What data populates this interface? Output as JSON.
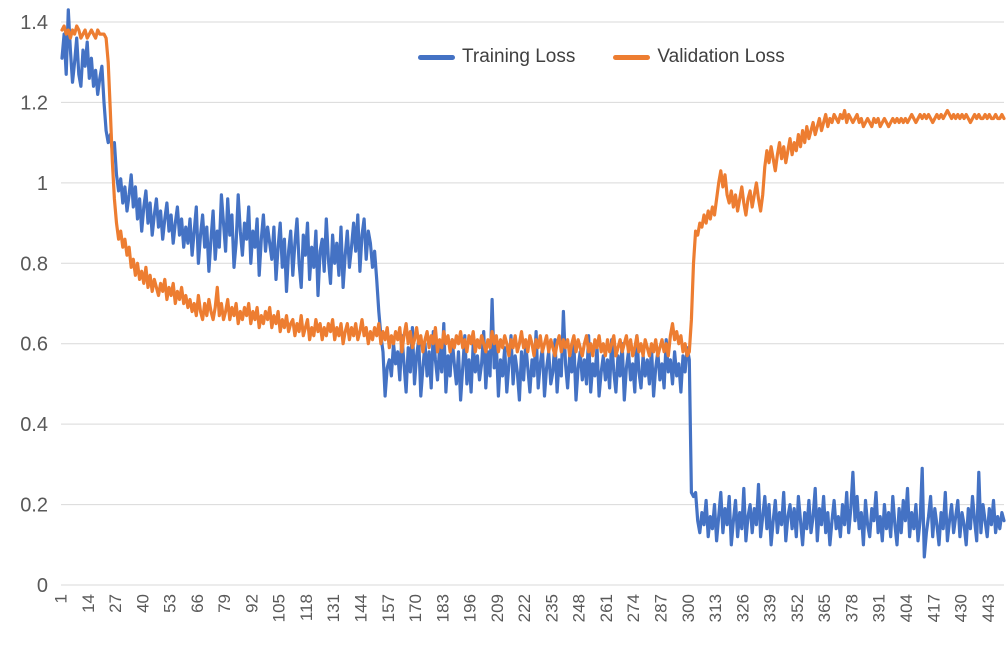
{
  "legend": {
    "training_label": "Training Loss",
    "validation_label": "Validation Loss"
  },
  "colors": {
    "training": "#4472C4",
    "validation": "#ED7D31",
    "gridline": "#D9D9D9",
    "axis_text": "#595959",
    "legend_text": "#404040",
    "background": "#FFFFFF"
  },
  "chart_data": {
    "type": "line",
    "title": "",
    "xlabel": "",
    "ylabel": "",
    "ylim": [
      0,
      1.4
    ],
    "y_tick_labels": [
      "1.4",
      "1.2",
      "1",
      "0.8",
      "0.6",
      "0.4",
      "0.2",
      "0"
    ],
    "y_tick_values": [
      1.4,
      1.2,
      1.0,
      0.8,
      0.6,
      0.4,
      0.2,
      0
    ],
    "x_range": [
      1,
      450
    ],
    "x_tick_step": 13,
    "x_tick_labels": [
      "1",
      "14",
      "27",
      "40",
      "53",
      "66",
      "79",
      "92",
      "105",
      "118",
      "131",
      "144",
      "157",
      "170",
      "183",
      "196",
      "209",
      "222",
      "235",
      "248",
      "261",
      "274",
      "287",
      "300",
      "313",
      "326",
      "339",
      "352",
      "365",
      "378",
      "391",
      "404",
      "417",
      "430",
      "443"
    ],
    "x_label_rotation": -90,
    "grid": "horizontal",
    "legend_position": "top",
    "series": [
      {
        "name": "Training Loss",
        "color": "#4472C4",
        "values": [
          1.31,
          1.37,
          1.27,
          1.43,
          1.33,
          1.25,
          1.3,
          1.36,
          1.27,
          1.24,
          1.33,
          1.29,
          1.35,
          1.26,
          1.31,
          1.24,
          1.28,
          1.22,
          1.26,
          1.29,
          1.2,
          1.13,
          1.1,
          1.12,
          1.08,
          1.1,
          1.02,
          0.98,
          1.01,
          0.95,
          0.99,
          0.93,
          0.97,
          1.02,
          0.94,
          0.99,
          0.91,
          0.96,
          0.88,
          0.94,
          0.98,
          0.9,
          0.95,
          0.87,
          0.92,
          0.96,
          0.89,
          0.93,
          0.86,
          0.91,
          0.95,
          0.88,
          0.92,
          0.85,
          0.9,
          0.94,
          0.87,
          0.91,
          0.84,
          0.89,
          0.85,
          0.91,
          0.82,
          0.88,
          0.94,
          0.8,
          0.87,
          0.92,
          0.84,
          0.89,
          0.78,
          0.86,
          0.93,
          0.81,
          0.88,
          0.84,
          0.97,
          0.9,
          0.83,
          0.96,
          0.87,
          0.92,
          0.79,
          0.85,
          0.97,
          0.88,
          0.82,
          0.9,
          0.86,
          0.94,
          0.8,
          0.88,
          0.84,
          0.91,
          0.77,
          0.86,
          0.92,
          0.83,
          0.89,
          0.85,
          0.81,
          0.89,
          0.76,
          0.84,
          0.9,
          0.79,
          0.86,
          0.73,
          0.83,
          0.88,
          0.77,
          0.85,
          0.91,
          0.8,
          0.74,
          0.87,
          0.82,
          0.9,
          0.76,
          0.84,
          0.79,
          0.88,
          0.72,
          0.83,
          0.86,
          0.78,
          0.91,
          0.81,
          0.75,
          0.87,
          0.8,
          0.85,
          0.77,
          0.89,
          0.74,
          0.82,
          0.88,
          0.79,
          0.84,
          0.9,
          0.83,
          0.92,
          0.78,
          0.87,
          0.91,
          0.81,
          0.88,
          0.85,
          0.79,
          0.83,
          0.76,
          0.68,
          0.62,
          0.58,
          0.47,
          0.54,
          0.56,
          0.52,
          0.6,
          0.55,
          0.58,
          0.51,
          0.62,
          0.55,
          0.48,
          0.59,
          0.53,
          0.64,
          0.5,
          0.57,
          0.61,
          0.47,
          0.54,
          0.6,
          0.52,
          0.58,
          0.49,
          0.63,
          0.56,
          0.51,
          0.59,
          0.53,
          0.65,
          0.48,
          0.57,
          0.52,
          0.61,
          0.55,
          0.5,
          0.58,
          0.46,
          0.54,
          0.62,
          0.5,
          0.56,
          0.48,
          0.6,
          0.53,
          0.57,
          0.51,
          0.55,
          0.63,
          0.49,
          0.58,
          0.52,
          0.71,
          0.54,
          0.6,
          0.47,
          0.56,
          0.52,
          0.59,
          0.48,
          0.55,
          0.62,
          0.5,
          0.57,
          0.53,
          0.46,
          0.58,
          0.51,
          0.6,
          0.54,
          0.48,
          0.56,
          0.52,
          0.63,
          0.49,
          0.55,
          0.59,
          0.47,
          0.54,
          0.58,
          0.5,
          0.53,
          0.61,
          0.48,
          0.56,
          0.52,
          0.68,
          0.55,
          0.49,
          0.57,
          0.53,
          0.6,
          0.46,
          0.54,
          0.58,
          0.51,
          0.56,
          0.5,
          0.62,
          0.48,
          0.55,
          0.52,
          0.59,
          0.47,
          0.53,
          0.57,
          0.51,
          0.56,
          0.49,
          0.61,
          0.53,
          0.48,
          0.57,
          0.52,
          0.6,
          0.46,
          0.54,
          0.58,
          0.51,
          0.55,
          0.48,
          0.62,
          0.53,
          0.49,
          0.57,
          0.52,
          0.56,
          0.5,
          0.59,
          0.47,
          0.54,
          0.58,
          0.51,
          0.55,
          0.49,
          0.61,
          0.53,
          0.56,
          0.5,
          0.58,
          0.52,
          0.55,
          0.48,
          0.57,
          0.53,
          0.59,
          0.56,
          0.23,
          0.22,
          0.23,
          0.16,
          0.13,
          0.18,
          0.15,
          0.21,
          0.12,
          0.17,
          0.14,
          0.2,
          0.11,
          0.17,
          0.23,
          0.13,
          0.19,
          0.15,
          0.22,
          0.1,
          0.16,
          0.21,
          0.12,
          0.18,
          0.14,
          0.24,
          0.11,
          0.17,
          0.2,
          0.13,
          0.19,
          0.15,
          0.25,
          0.12,
          0.17,
          0.22,
          0.14,
          0.2,
          0.1,
          0.16,
          0.21,
          0.13,
          0.18,
          0.15,
          0.23,
          0.11,
          0.17,
          0.2,
          0.14,
          0.19,
          0.12,
          0.22,
          0.16,
          0.1,
          0.18,
          0.14,
          0.21,
          0.13,
          0.17,
          0.24,
          0.11,
          0.19,
          0.15,
          0.22,
          0.13,
          0.18,
          0.1,
          0.16,
          0.21,
          0.14,
          0.17,
          0.12,
          0.2,
          0.15,
          0.23,
          0.13,
          0.19,
          0.28,
          0.16,
          0.22,
          0.14,
          0.18,
          0.1,
          0.21,
          0.15,
          0.12,
          0.19,
          0.16,
          0.23,
          0.13,
          0.17,
          0.11,
          0.2,
          0.14,
          0.18,
          0.12,
          0.22,
          0.15,
          0.1,
          0.19,
          0.13,
          0.21,
          0.16,
          0.24,
          0.12,
          0.18,
          0.14,
          0.2,
          0.11,
          0.16,
          0.29,
          0.07,
          0.13,
          0.17,
          0.22,
          0.12,
          0.19,
          0.15,
          0.1,
          0.18,
          0.14,
          0.23,
          0.11,
          0.16,
          0.2,
          0.13,
          0.17,
          0.21,
          0.12,
          0.18,
          0.15,
          0.1,
          0.19,
          0.14,
          0.22,
          0.16,
          0.11,
          0.28,
          0.13,
          0.2,
          0.16,
          0.12,
          0.19,
          0.15,
          0.21,
          0.13,
          0.17,
          0.14,
          0.18,
          0.16
        ]
      },
      {
        "name": "Validation Loss",
        "color": "#ED7D31",
        "values": [
          1.38,
          1.39,
          1.37,
          1.38,
          1.36,
          1.38,
          1.37,
          1.39,
          1.38,
          1.36,
          1.37,
          1.38,
          1.36,
          1.37,
          1.38,
          1.37,
          1.36,
          1.38,
          1.37,
          1.37,
          1.37,
          1.36,
          1.3,
          1.18,
          1.05,
          0.96,
          0.9,
          0.86,
          0.88,
          0.84,
          0.86,
          0.82,
          0.84,
          0.79,
          0.81,
          0.77,
          0.8,
          0.76,
          0.78,
          0.75,
          0.79,
          0.74,
          0.77,
          0.73,
          0.76,
          0.74,
          0.72,
          0.75,
          0.73,
          0.76,
          0.71,
          0.74,
          0.72,
          0.75,
          0.7,
          0.73,
          0.71,
          0.74,
          0.7,
          0.72,
          0.69,
          0.71,
          0.68,
          0.7,
          0.67,
          0.72,
          0.68,
          0.66,
          0.7,
          0.67,
          0.71,
          0.68,
          0.66,
          0.69,
          0.74,
          0.67,
          0.7,
          0.66,
          0.68,
          0.71,
          0.66,
          0.69,
          0.67,
          0.7,
          0.65,
          0.68,
          0.66,
          0.69,
          0.67,
          0.7,
          0.65,
          0.68,
          0.66,
          0.69,
          0.64,
          0.67,
          0.65,
          0.68,
          0.66,
          0.69,
          0.64,
          0.67,
          0.65,
          0.68,
          0.63,
          0.66,
          0.64,
          0.67,
          0.63,
          0.65,
          0.66,
          0.62,
          0.65,
          0.63,
          0.67,
          0.62,
          0.64,
          0.66,
          0.61,
          0.64,
          0.62,
          0.66,
          0.63,
          0.65,
          0.61,
          0.64,
          0.62,
          0.65,
          0.63,
          0.66,
          0.61,
          0.64,
          0.62,
          0.65,
          0.6,
          0.63,
          0.65,
          0.61,
          0.64,
          0.62,
          0.65,
          0.61,
          0.63,
          0.66,
          0.62,
          0.64,
          0.6,
          0.63,
          0.61,
          0.64,
          0.62,
          0.65,
          0.6,
          0.63,
          0.61,
          0.64,
          0.59,
          0.62,
          0.6,
          0.63,
          0.61,
          0.64,
          0.58,
          0.62,
          0.65,
          0.6,
          0.63,
          0.59,
          0.61,
          0.64,
          0.6,
          0.62,
          0.58,
          0.61,
          0.63,
          0.59,
          0.62,
          0.6,
          0.64,
          0.58,
          0.61,
          0.59,
          0.63,
          0.6,
          0.62,
          0.58,
          0.61,
          0.59,
          0.62,
          0.6,
          0.63,
          0.59,
          0.61,
          0.58,
          0.62,
          0.6,
          0.63,
          0.58,
          0.61,
          0.59,
          0.62,
          0.6,
          0.58,
          0.61,
          0.59,
          0.63,
          0.6,
          0.62,
          0.58,
          0.61,
          0.59,
          0.62,
          0.6,
          0.57,
          0.61,
          0.59,
          0.62,
          0.58,
          0.6,
          0.63,
          0.59,
          0.61,
          0.58,
          0.62,
          0.6,
          0.57,
          0.61,
          0.59,
          0.62,
          0.58,
          0.6,
          0.62,
          0.58,
          0.61,
          0.59,
          0.57,
          0.6,
          0.62,
          0.58,
          0.61,
          0.59,
          0.61,
          0.57,
          0.6,
          0.62,
          0.58,
          0.61,
          0.59,
          0.57,
          0.6,
          0.62,
          0.58,
          0.6,
          0.57,
          0.61,
          0.59,
          0.62,
          0.58,
          0.6,
          0.57,
          0.61,
          0.58,
          0.6,
          0.62,
          0.57,
          0.59,
          0.61,
          0.58,
          0.6,
          0.62,
          0.58,
          0.61,
          0.57,
          0.59,
          0.62,
          0.58,
          0.6,
          0.57,
          0.61,
          0.59,
          0.57,
          0.6,
          0.58,
          0.61,
          0.57,
          0.59,
          0.61,
          0.58,
          0.6,
          0.57,
          0.62,
          0.65,
          0.61,
          0.63,
          0.6,
          0.62,
          0.58,
          0.6,
          0.57,
          0.58,
          0.66,
          0.8,
          0.88,
          0.87,
          0.9,
          0.89,
          0.92,
          0.9,
          0.93,
          0.91,
          0.94,
          0.92,
          0.96,
          1.0,
          1.03,
          0.99,
          1.02,
          0.97,
          0.95,
          0.98,
          0.94,
          0.97,
          0.93,
          0.96,
          0.99,
          0.95,
          0.92,
          0.96,
          0.98,
          0.94,
          0.97,
          1.0,
          0.96,
          0.93,
          0.97,
          1.04,
          1.08,
          1.05,
          1.09,
          1.06,
          1.03,
          1.07,
          1.1,
          1.06,
          1.09,
          1.05,
          1.08,
          1.11,
          1.07,
          1.1,
          1.08,
          1.12,
          1.09,
          1.13,
          1.1,
          1.14,
          1.11,
          1.13,
          1.15,
          1.12,
          1.14,
          1.16,
          1.13,
          1.15,
          1.17,
          1.14,
          1.16,
          1.15,
          1.17,
          1.16,
          1.15,
          1.17,
          1.16,
          1.18,
          1.15,
          1.17,
          1.16,
          1.15,
          1.16,
          1.17,
          1.15,
          1.16,
          1.14,
          1.15,
          1.16,
          1.15,
          1.14,
          1.16,
          1.15,
          1.16,
          1.14,
          1.15,
          1.16,
          1.15,
          1.14,
          1.15,
          1.16,
          1.15,
          1.16,
          1.15,
          1.16,
          1.15,
          1.16,
          1.15,
          1.16,
          1.17,
          1.16,
          1.15,
          1.16,
          1.17,
          1.16,
          1.17,
          1.16,
          1.17,
          1.16,
          1.15,
          1.16,
          1.17,
          1.16,
          1.17,
          1.16,
          1.17,
          1.18,
          1.17,
          1.16,
          1.17,
          1.16,
          1.17,
          1.16,
          1.17,
          1.16,
          1.17,
          1.16,
          1.15,
          1.16,
          1.17,
          1.16,
          1.17,
          1.16,
          1.16,
          1.17,
          1.16,
          1.17,
          1.16,
          1.16,
          1.17,
          1.16,
          1.16,
          1.17,
          1.16
        ]
      }
    ]
  }
}
